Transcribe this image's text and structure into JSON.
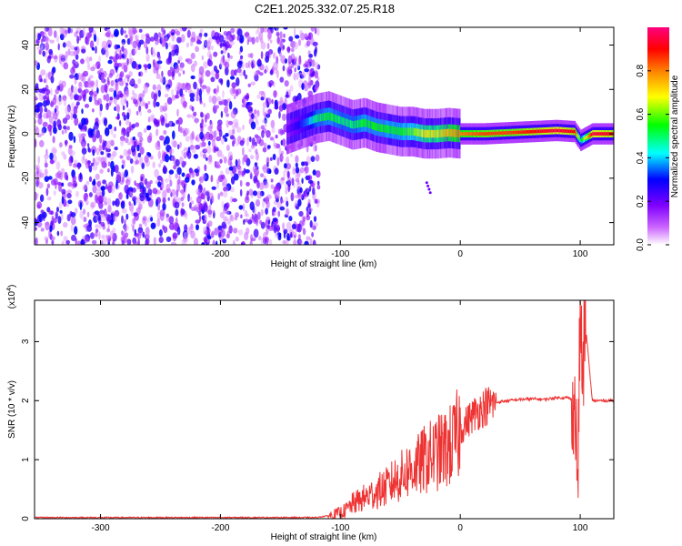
{
  "title": "C2E1.2025.332.07.25.R18",
  "chart_data": [
    {
      "type": "heatmap",
      "xlabel": "Height of straight line (km)",
      "ylabel": "Frequency (Hz)",
      "xlim": [
        -355,
        128
      ],
      "ylim": [
        -50,
        48
      ],
      "xticks": [
        -300,
        -200,
        -100,
        0,
        100
      ],
      "yticks": [
        -40,
        -20,
        0,
        20,
        40
      ],
      "colorbar": {
        "label": "Normalized spectral amplitude",
        "range": [
          0,
          1
        ],
        "ticks": [
          "0.0",
          "0.2",
          "0.4",
          "0.6",
          "0.8"
        ],
        "colors": [
          "#ffffff",
          "#cc66ff",
          "#8000ff",
          "#0000ff",
          "#00ffff",
          "#00ff00",
          "#ffff00",
          "#ff8000",
          "#ff0000",
          "#ff0080"
        ]
      },
      "noise_region_x": [
        -355,
        -118
      ],
      "ridge": {
        "x": [
          -145,
          -130,
          -120,
          -110,
          -100,
          -90,
          -80,
          -70,
          -60,
          -50,
          -40,
          -30,
          -20,
          -10,
          0,
          20,
          40,
          60,
          80,
          95,
          100,
          110,
          128
        ],
        "y": [
          2,
          5,
          7,
          8,
          6,
          4,
          5,
          3,
          2,
          1,
          1,
          0,
          0,
          0.5,
          0,
          0,
          0.5,
          1,
          1.5,
          1,
          -3,
          0,
          0
        ],
        "amplitude": [
          0.2,
          0.35,
          0.5,
          0.55,
          0.5,
          0.5,
          0.55,
          0.55,
          0.55,
          0.55,
          0.6,
          0.7,
          0.7,
          0.75,
          0.8,
          0.85,
          0.85,
          0.9,
          0.95,
          0.9,
          0.5,
          0.95,
          0.9
        ]
      }
    },
    {
      "type": "line",
      "xlabel": "Height of straight line (km)",
      "ylabel": "SNR (10 * v/v)",
      "y_multiplier": "(x10",
      "y_multiplier_exp": "4",
      "y_multiplier_close": ")",
      "xlim": [
        -355,
        128
      ],
      "ylim": [
        0,
        3.7
      ],
      "xticks": [
        -300,
        -200,
        -100,
        0,
        100
      ],
      "yticks": [
        0,
        1,
        2,
        3
      ],
      "color": "#ee3333",
      "x": [
        -355,
        -120,
        -110,
        -100,
        -95,
        -90,
        -85,
        -80,
        -75,
        -70,
        -65,
        -60,
        -55,
        -50,
        -45,
        -40,
        -35,
        -30,
        -25,
        -20,
        -15,
        -10,
        -5,
        0,
        10,
        20,
        30,
        40,
        50,
        60,
        70,
        80,
        90,
        94,
        96,
        98,
        100,
        102,
        104,
        110,
        120,
        128
      ],
      "y": [
        0.02,
        0.02,
        0.05,
        0.1,
        0.15,
        0.25,
        0.3,
        0.35,
        0.4,
        0.45,
        0.5,
        0.55,
        0.65,
        0.7,
        0.8,
        0.85,
        0.9,
        1.0,
        1.05,
        1.1,
        1.15,
        1.2,
        1.3,
        1.5,
        1.75,
        1.9,
        1.97,
        2.0,
        2.02,
        2.03,
        2.02,
        2.05,
        2.05,
        2.0,
        1.8,
        0.5,
        3.6,
        2.2,
        3.4,
        2.0,
        2.0,
        2.0
      ]
    }
  ]
}
